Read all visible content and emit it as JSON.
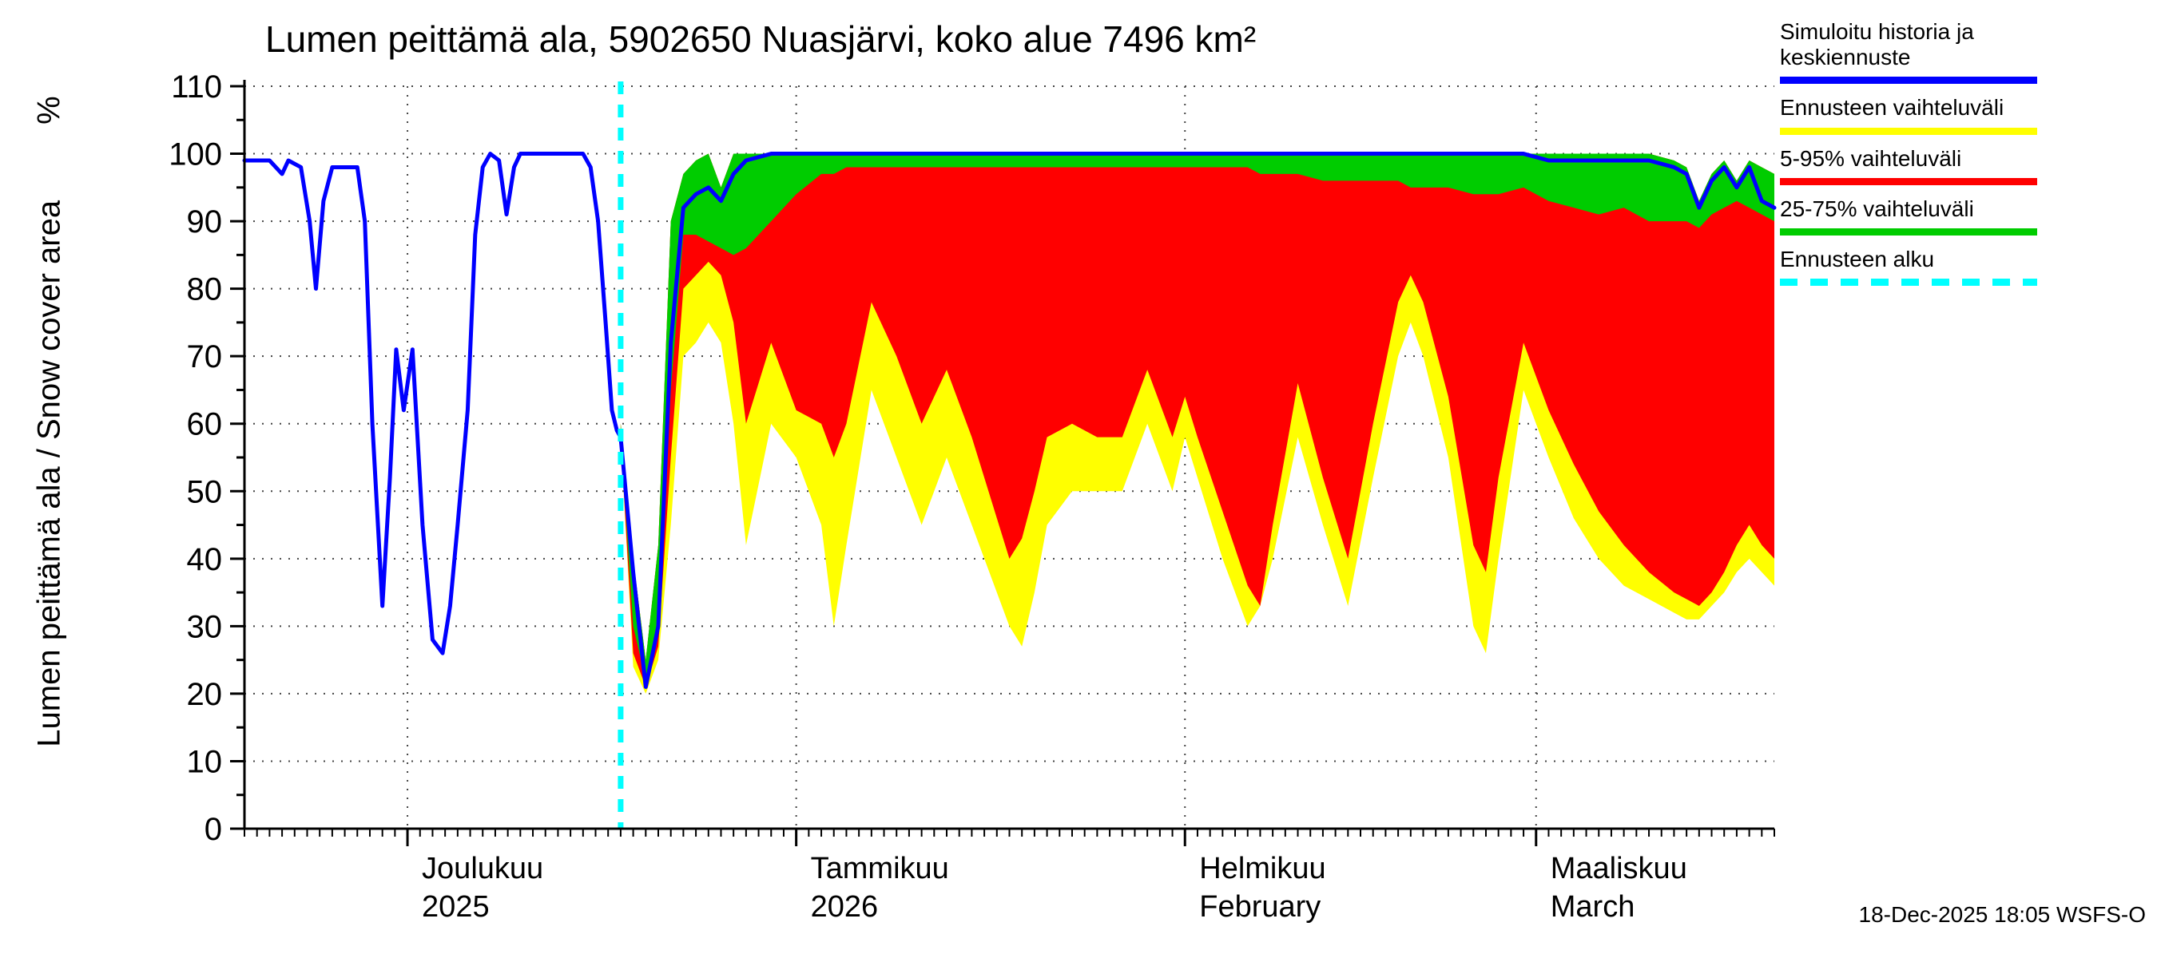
{
  "title": "Lumen peittämä ala, 5902650 Nuasjärvi, koko alue 7496 km²",
  "y_axis": {
    "label": "Lumen peittämä ala / Snow cover area",
    "unit": "%"
  },
  "timestamp": "18-Dec-2025 18:05 WSFS-O",
  "colors": {
    "blue": "#0000ff",
    "yellow": "#ffff00",
    "red": "#ff0000",
    "green": "#00cc00",
    "cyan": "#00ffff"
  },
  "legend": [
    {
      "label": "Simuloitu historia ja keskiennuste",
      "color": "#0000ff",
      "style": "solid"
    },
    {
      "label": "Ennusteen vaihteluväli",
      "color": "#ffff00",
      "style": "solid"
    },
    {
      "label": "5-95% vaihteluväli",
      "color": "#ff0000",
      "style": "solid"
    },
    {
      "label": "25-75% vaihteluväli",
      "color": "#00cc00",
      "style": "solid"
    },
    {
      "label": "Ennusteen alku",
      "color": "#00ffff",
      "style": "dashed"
    }
  ],
  "chart_data": {
    "type": "area",
    "title": "Lumen peittämä ala, 5902650 Nuasjärvi, koko alue 7496 km²",
    "ylabel": "Lumen peittämä ala / Snow cover area %",
    "ylim": [
      0,
      110
    ],
    "y_ticks": [
      0,
      10,
      20,
      30,
      40,
      50,
      60,
      70,
      80,
      90,
      100,
      110
    ],
    "x_unit": "day index (day 0 ≈ 18 Nov 2025, day 122 ≈ 20 Mar 2026, estimated from axis)",
    "x_range": [
      0,
      122
    ],
    "months": [
      {
        "day": 13,
        "label": "Joulukuu",
        "sublabel": "2025"
      },
      {
        "day": 44,
        "label": "Tammikuu",
        "sublabel": "2026"
      },
      {
        "day": 75,
        "label": "Helmikuu",
        "sublabel": "February"
      },
      {
        "day": 103,
        "label": "Maaliskuu",
        "sublabel": "March"
      }
    ],
    "forecast_start_day": 30,
    "history": {
      "name": "Simuloitu historia (blue line, % snow cover)",
      "x": [
        0,
        1,
        2,
        3,
        3.5,
        4.5,
        5.2,
        5.7,
        6.3,
        7,
        8,
        9,
        9.6,
        10.2,
        11,
        11.6,
        12.1,
        12.7,
        13.4,
        14.2,
        15,
        15.8,
        16.4,
        17,
        17.8,
        18.4,
        19,
        19.6,
        20.3,
        20.9,
        21.5,
        22,
        23,
        24,
        25,
        26,
        27,
        27.6,
        28.2,
        28.8,
        29.3,
        29.7,
        30
      ],
      "y": [
        99,
        99,
        99,
        97,
        99,
        98,
        90,
        80,
        93,
        98,
        98,
        98,
        90,
        60,
        33,
        52,
        71,
        62,
        71,
        45,
        28,
        26,
        33,
        45,
        62,
        88,
        98,
        100,
        99,
        91,
        98,
        100,
        100,
        100,
        100,
        100,
        100,
        98,
        90,
        75,
        62,
        59,
        58
      ]
    },
    "forecast": {
      "days": [
        30,
        31,
        32,
        33,
        34,
        35,
        36,
        37,
        38,
        39,
        40,
        42,
        44,
        46,
        47,
        48,
        50,
        52,
        54,
        56,
        58,
        60,
        61,
        62,
        63,
        64,
        66,
        68,
        70,
        72,
        74,
        75,
        76,
        78,
        80,
        81,
        82,
        84,
        86,
        88,
        90,
        92,
        93,
        94,
        96,
        98,
        99,
        100,
        102,
        104,
        106,
        108,
        110,
        112,
        114,
        115,
        116,
        117,
        118,
        119,
        120,
        121,
        122
      ],
      "total_high": [
        60,
        40,
        25,
        42,
        90,
        97,
        99,
        100,
        95,
        100,
        100,
        100,
        100,
        100,
        100,
        100,
        100,
        100,
        100,
        100,
        100,
        100,
        100,
        100,
        100,
        100,
        100,
        100,
        100,
        100,
        100,
        100,
        100,
        100,
        100,
        100,
        100,
        100,
        100,
        100,
        100,
        100,
        100,
        100,
        100,
        100,
        100,
        100,
        100,
        100,
        100,
        100,
        100,
        100,
        99,
        98,
        93,
        97,
        99,
        96,
        99,
        98,
        97
      ],
      "total_low": [
        58,
        24,
        20,
        25,
        45,
        70,
        72,
        75,
        72,
        60,
        42,
        60,
        55,
        45,
        30,
        42,
        65,
        55,
        45,
        55,
        45,
        35,
        30,
        27,
        35,
        45,
        50,
        50,
        50,
        60,
        50,
        58,
        52,
        40,
        30,
        33,
        40,
        58,
        45,
        33,
        52,
        70,
        75,
        70,
        55,
        30,
        26,
        40,
        65,
        55,
        46,
        40,
        36,
        34,
        32,
        31,
        31,
        33,
        35,
        38,
        40,
        38,
        36
      ],
      "p5_95_low": [
        58,
        26,
        21,
        27,
        55,
        80,
        82,
        84,
        82,
        75,
        60,
        72,
        62,
        60,
        55,
        60,
        78,
        70,
        60,
        68,
        58,
        46,
        40,
        43,
        50,
        58,
        60,
        58,
        58,
        68,
        58,
        64,
        58,
        47,
        36,
        33,
        45,
        66,
        52,
        40,
        60,
        78,
        82,
        78,
        64,
        42,
        38,
        52,
        72,
        62,
        54,
        47,
        42,
        38,
        35,
        34,
        33,
        35,
        38,
        42,
        45,
        42,
        40
      ],
      "p25_75_low": [
        58,
        30,
        22,
        30,
        65,
        88,
        88,
        87,
        86,
        85,
        86,
        90,
        94,
        97,
        97,
        98,
        98,
        98,
        98,
        98,
        98,
        98,
        98,
        98,
        98,
        98,
        98,
        98,
        98,
        98,
        98,
        98,
        98,
        98,
        98,
        97,
        97,
        97,
        96,
        96,
        96,
        96,
        95,
        95,
        95,
        94,
        94,
        94,
        95,
        93,
        92,
        91,
        92,
        90,
        90,
        90,
        89,
        91,
        92,
        93,
        92,
        91,
        90
      ],
      "median": [
        58,
        38,
        21,
        30,
        72,
        92,
        94,
        95,
        93,
        97,
        99,
        100,
        100,
        100,
        100,
        100,
        100,
        100,
        100,
        100,
        100,
        100,
        100,
        100,
        100,
        100,
        100,
        100,
        100,
        100,
        100,
        100,
        100,
        100,
        100,
        100,
        100,
        100,
        100,
        100,
        100,
        100,
        100,
        100,
        100,
        100,
        100,
        100,
        100,
        99,
        99,
        99,
        99,
        99,
        98,
        97,
        92,
        96,
        98,
        95,
        98,
        93,
        92
      ]
    },
    "legend_entries": [
      "Simuloitu historia ja keskiennuste",
      "Ennusteen vaihteluväli",
      "5-95% vaihteluväli",
      "25-75% vaihteluväli",
      "Ennusteen alku"
    ],
    "legend_position": "top-right",
    "grid": "dotted horizontal at every 10 units, dotted vertical at month starts"
  }
}
